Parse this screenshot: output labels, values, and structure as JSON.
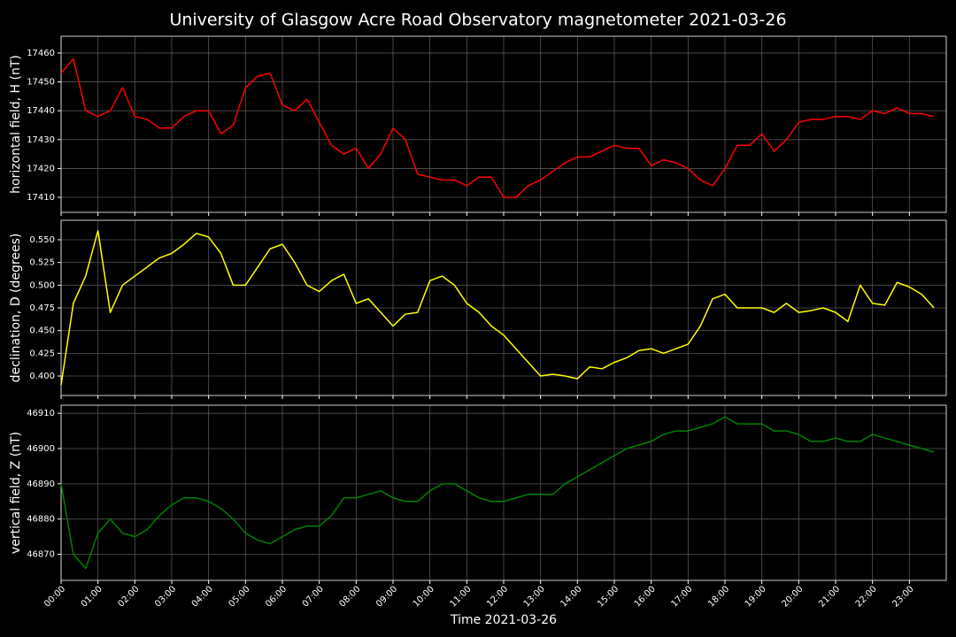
{
  "title": "University of Glasgow Acre Road Observatory magnetometer 2021-03-26",
  "chart_data": [
    {
      "type": "line",
      "ylabel": "horizontal field, H (nT)",
      "color": "#ff0000",
      "grid": true,
      "show_xtick_labels": false,
      "xlim": [
        "00:00",
        "24:00"
      ],
      "ylim": [
        17404.8,
        17465.8
      ],
      "yticks": [
        17410,
        17420,
        17430,
        17440,
        17450,
        17460
      ],
      "xticks": [
        "00:00",
        "01:00",
        "02:00",
        "03:00",
        "04:00",
        "05:00",
        "06:00",
        "07:00",
        "08:00",
        "09:00",
        "10:00",
        "11:00",
        "12:00",
        "13:00",
        "14:00",
        "15:00",
        "16:00",
        "17:00",
        "18:00",
        "19:00",
        "20:00",
        "21:00",
        "22:00",
        "23:00"
      ],
      "x": [
        "00:00",
        "00:20",
        "00:40",
        "01:00",
        "01:20",
        "01:40",
        "02:00",
        "02:20",
        "02:40",
        "03:00",
        "03:20",
        "03:40",
        "04:00",
        "04:20",
        "04:40",
        "05:00",
        "05:20",
        "05:40",
        "06:00",
        "06:20",
        "06:40",
        "07:00",
        "07:20",
        "07:40",
        "08:00",
        "08:20",
        "08:40",
        "09:00",
        "09:20",
        "09:40",
        "10:00",
        "10:20",
        "10:40",
        "11:00",
        "11:20",
        "11:40",
        "12:00",
        "12:20",
        "12:40",
        "13:00",
        "13:20",
        "13:40",
        "14:00",
        "14:20",
        "14:40",
        "15:00",
        "15:20",
        "15:40",
        "16:00",
        "16:20",
        "16:40",
        "17:00",
        "17:20",
        "17:40",
        "18:00",
        "18:20",
        "18:40",
        "19:00",
        "19:20",
        "19:40",
        "20:00",
        "20:20",
        "20:40",
        "21:00",
        "21:20",
        "21:40",
        "22:00",
        "22:20",
        "22:40",
        "23:00",
        "23:20",
        "23:40"
      ],
      "values": [
        17453,
        17458,
        17440,
        17438,
        17440,
        17448,
        17438,
        17437,
        17434,
        17434,
        17438,
        17440,
        17440,
        17432,
        17435,
        17448,
        17452,
        17453,
        17442,
        17440,
        17444,
        17436,
        17428,
        17425,
        17427,
        17420,
        17425,
        17434,
        17430,
        17418,
        17417,
        17416,
        17416,
        17414,
        17417,
        17417,
        17410,
        17410,
        17414,
        17416,
        17419,
        17422,
        17424,
        17424,
        17426,
        17428,
        17427,
        17427,
        17421,
        17423,
        17422,
        17420,
        17416,
        17414,
        17420,
        17428,
        17428,
        17432,
        17426,
        17430,
        17436,
        17437,
        17437,
        17438,
        17438,
        17437,
        17440,
        17439,
        17441,
        17439,
        17439,
        17438
      ]
    },
    {
      "type": "line",
      "ylabel": "declination, D (degrees)",
      "color": "#ffff00",
      "grid": true,
      "show_xtick_labels": false,
      "xlim": [
        "00:00",
        "24:00"
      ],
      "ylim": [
        0.3786,
        0.5714
      ],
      "yticks": [
        {
          "value": 0.4,
          "label": "0.400"
        },
        0.425,
        {
          "value": 0.45,
          "label": "0.450"
        },
        0.475,
        {
          "value": 0.5,
          "label": "0.500"
        },
        0.525,
        {
          "value": 0.55,
          "label": "0.550"
        }
      ],
      "xticks": [
        "00:00",
        "01:00",
        "02:00",
        "03:00",
        "04:00",
        "05:00",
        "06:00",
        "07:00",
        "08:00",
        "09:00",
        "10:00",
        "11:00",
        "12:00",
        "13:00",
        "14:00",
        "15:00",
        "16:00",
        "17:00",
        "18:00",
        "19:00",
        "20:00",
        "21:00",
        "22:00",
        "23:00"
      ],
      "x": [
        "00:00",
        "00:20",
        "00:40",
        "01:00",
        "01:20",
        "01:40",
        "02:00",
        "02:20",
        "02:40",
        "03:00",
        "03:20",
        "03:40",
        "04:00",
        "04:20",
        "04:40",
        "05:00",
        "05:20",
        "05:40",
        "06:00",
        "06:20",
        "06:40",
        "07:00",
        "07:20",
        "07:40",
        "08:00",
        "08:20",
        "08:40",
        "09:00",
        "09:20",
        "09:40",
        "10:00",
        "10:20",
        "10:40",
        "11:00",
        "11:20",
        "11:40",
        "12:00",
        "12:20",
        "12:40",
        "13:00",
        "13:20",
        "13:40",
        "14:00",
        "14:20",
        "14:40",
        "15:00",
        "15:20",
        "15:40",
        "16:00",
        "16:20",
        "16:40",
        "17:00",
        "17:20",
        "17:40",
        "18:00",
        "18:20",
        "18:40",
        "19:00",
        "19:20",
        "19:40",
        "20:00",
        "20:20",
        "20:40",
        "21:00",
        "21:20",
        "21:40",
        "22:00",
        "22:20",
        "22:40",
        "23:00",
        "23:20",
        "23:40"
      ],
      "values": [
        0.39,
        0.48,
        0.51,
        0.56,
        0.47,
        0.5,
        0.51,
        0.52,
        0.53,
        0.535,
        0.545,
        0.557,
        0.553,
        0.535,
        0.5,
        0.5,
        0.52,
        0.54,
        0.545,
        0.525,
        0.5,
        0.493,
        0.505,
        0.512,
        0.48,
        0.485,
        0.47,
        0.455,
        0.468,
        0.47,
        0.505,
        0.51,
        0.5,
        0.48,
        0.47,
        0.455,
        0.445,
        0.43,
        0.415,
        0.4,
        0.402,
        0.4,
        0.397,
        0.41,
        0.408,
        0.415,
        0.42,
        0.428,
        0.43,
        0.425,
        0.43,
        0.435,
        0.455,
        0.485,
        0.49,
        0.475,
        0.475,
        0.475,
        0.47,
        0.48,
        0.47,
        0.472,
        0.475,
        0.47,
        0.46,
        0.5,
        0.48,
        0.478,
        0.503,
        0.498,
        0.49,
        0.475
      ]
    },
    {
      "type": "line",
      "ylabel": "vertical field, Z (nT)",
      "xlabel": "Time 2021-03-26",
      "color": "#008000",
      "grid": true,
      "show_xtick_labels": true,
      "xlim": [
        "00:00",
        "24:00"
      ],
      "ylim": [
        46862.6,
        46912.3
      ],
      "yticks": [
        46870,
        46880,
        46890,
        46900,
        46910
      ],
      "xticks": [
        "00:00",
        "01:00",
        "02:00",
        "03:00",
        "04:00",
        "05:00",
        "06:00",
        "07:00",
        "08:00",
        "09:00",
        "10:00",
        "11:00",
        "12:00",
        "13:00",
        "14:00",
        "15:00",
        "16:00",
        "17:00",
        "18:00",
        "19:00",
        "20:00",
        "21:00",
        "22:00",
        "23:00"
      ],
      "x": [
        "00:00",
        "00:20",
        "00:40",
        "01:00",
        "01:20",
        "01:40",
        "02:00",
        "02:20",
        "02:40",
        "03:00",
        "03:20",
        "03:40",
        "04:00",
        "04:20",
        "04:40",
        "05:00",
        "05:20",
        "05:40",
        "06:00",
        "06:20",
        "06:40",
        "07:00",
        "07:20",
        "07:40",
        "08:00",
        "08:20",
        "08:40",
        "09:00",
        "09:20",
        "09:40",
        "10:00",
        "10:20",
        "10:40",
        "11:00",
        "11:20",
        "11:40",
        "12:00",
        "12:20",
        "12:40",
        "13:00",
        "13:20",
        "13:40",
        "14:00",
        "14:20",
        "14:40",
        "15:00",
        "15:20",
        "15:40",
        "16:00",
        "16:20",
        "16:40",
        "17:00",
        "17:20",
        "17:40",
        "18:00",
        "18:20",
        "18:40",
        "19:00",
        "19:20",
        "19:40",
        "20:00",
        "20:20",
        "20:40",
        "21:00",
        "21:20",
        "21:40",
        "22:00",
        "22:20",
        "22:40",
        "23:00",
        "23:20",
        "23:40"
      ],
      "values": [
        46890,
        46870,
        46866,
        46876,
        46880,
        46876,
        46875,
        46877,
        46881,
        46884,
        46886,
        46886,
        46885,
        46883,
        46880,
        46876,
        46874,
        46873,
        46875,
        46877,
        46878,
        46878,
        46881,
        46886,
        46886,
        46887,
        46888,
        46886,
        46885,
        46885,
        46888,
        46890,
        46890,
        46888,
        46886,
        46885,
        46885,
        46886,
        46887,
        46887,
        46887,
        46890,
        46892,
        46894,
        46896,
        46898,
        46900,
        46901,
        46902,
        46904,
        46905,
        46905,
        46906,
        46907,
        46909,
        46907,
        46907,
        46907,
        46905,
        46905,
        46904,
        46902,
        46902,
        46903,
        46902,
        46902,
        46904,
        46903,
        46902,
        46901,
        46900,
        46899
      ]
    }
  ]
}
